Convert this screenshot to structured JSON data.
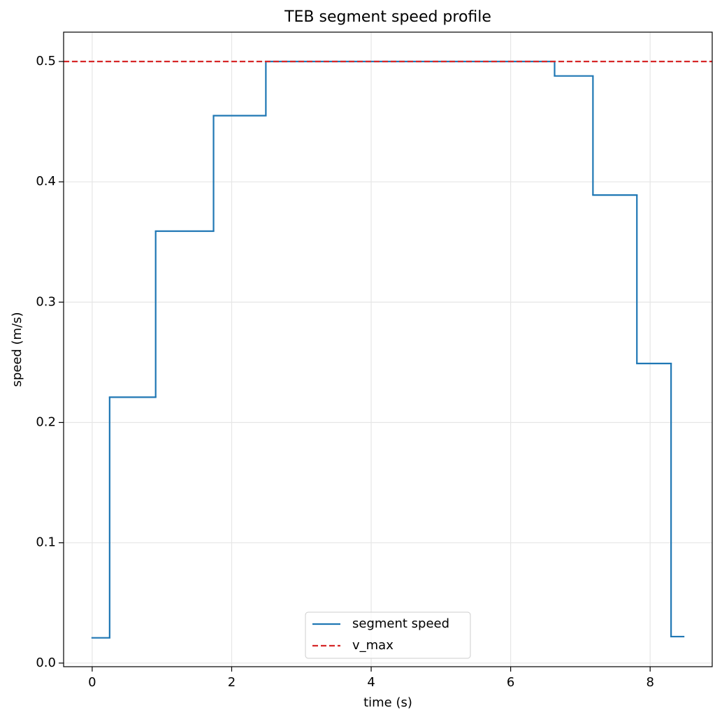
{
  "chart_data": {
    "type": "step",
    "title": "TEB segment speed profile",
    "x_label": "time (s)",
    "y_label": "speed (m/s)",
    "series": [
      {
        "name": "segment speed",
        "color": "#1f77b4",
        "x": [
          0,
          0.25,
          0.91,
          1.74,
          2.49,
          6.63,
          7.18,
          7.81,
          8.3,
          8.48
        ],
        "values": [
          0.021,
          0.221,
          0.359,
          0.455,
          0.5,
          0.488,
          0.389,
          0.249,
          0.022,
          0.022
        ]
      },
      {
        "name": "v_max",
        "color": "#d62728",
        "kind": "hline",
        "dashed": true,
        "value": 0.5
      }
    ],
    "xlim": [
      -0.41,
      8.89
    ],
    "ylim": [
      -0.003,
      0.5244
    ],
    "xticks": [
      0,
      2,
      4,
      6,
      8
    ],
    "yticks": [
      {
        "value": 0,
        "label": "0.0"
      },
      0.1,
      0.2,
      0.3,
      0.4,
      0.5
    ],
    "grid": true,
    "legend": "lower center"
  }
}
